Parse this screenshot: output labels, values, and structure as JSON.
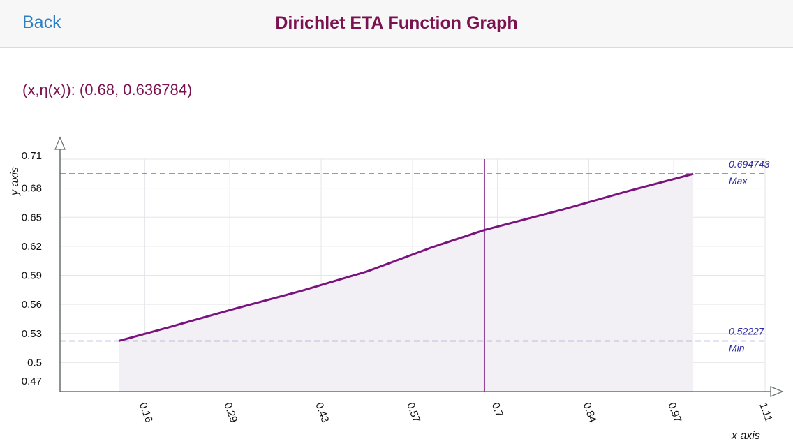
{
  "navbar": {
    "back_label": "Back",
    "title": "Dirichlet ETA Function Graph"
  },
  "readout": {
    "text": "(x,η(x)): (0.68, 0.636784)"
  },
  "colors": {
    "accent": "#7a1250",
    "curve": "#7b137f",
    "guide": "#2b2a9e",
    "back_link": "#2f7fc4",
    "fill": "#f2f0f5"
  },
  "chart_data": {
    "type": "area",
    "title": "",
    "xlabel": "x axis",
    "ylabel": "y axis",
    "xlim": [
      0.03,
      1.11
    ],
    "ylim": [
      0.47,
      0.71
    ],
    "x_ticks": [
      "0.16",
      "0.29",
      "0.43",
      "0.57",
      "0.7",
      "0.84",
      "0.97",
      "1.11"
    ],
    "x_tick_values": [
      0.16,
      0.29,
      0.43,
      0.57,
      0.7,
      0.84,
      0.97,
      1.11
    ],
    "y_ticks": [
      "0.71",
      "0.68",
      "0.65",
      "0.62",
      "0.59",
      "0.56",
      "0.53",
      "0.5",
      "0.47"
    ],
    "y_tick_values": [
      0.71,
      0.68,
      0.65,
      0.62,
      0.59,
      0.56,
      0.53,
      0.5,
      0.47
    ],
    "grid": true,
    "series": [
      {
        "x": [
          0.12,
          0.2,
          0.3,
          0.4,
          0.5,
          0.6,
          0.68,
          0.8,
          0.9,
          1.0
        ],
        "y": [
          0.52227,
          0.537,
          0.556,
          0.574,
          0.594,
          0.619,
          0.636784,
          0.658,
          0.677,
          0.694743
        ]
      }
    ],
    "max_line": {
      "value": 0.694743,
      "value_label": "0.694743",
      "label": "Max"
    },
    "min_line": {
      "value": 0.52227,
      "value_label": "0.52227",
      "label": "Min"
    },
    "cursor": {
      "x": 0.68,
      "y": 0.636784
    }
  }
}
